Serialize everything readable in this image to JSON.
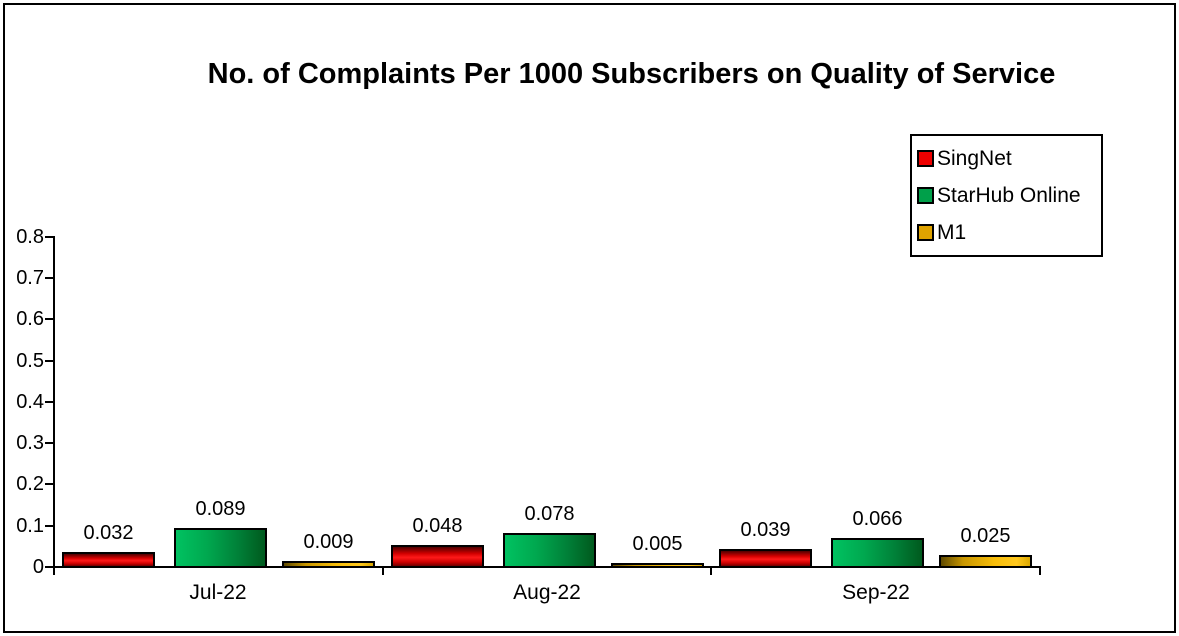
{
  "chart_data": {
    "type": "bar",
    "title": "No. of Complaints Per 1000 Subscribers on Quality of Service",
    "categories": [
      "Jul-22",
      "Aug-22",
      "Sep-22"
    ],
    "series": [
      {
        "name": "SingNet",
        "color": "#ee0000",
        "gradient": "linear-gradient(180deg,#4f0000 0%,#d40000 35%,#ff1a1a 55%,#cc0000 80%,#6f0000 100%)",
        "values": [
          0.032,
          0.048,
          0.039
        ],
        "labels": [
          "0.032",
          "0.048",
          "0.039"
        ]
      },
      {
        "name": "StarHub Online",
        "color": "#00a04a",
        "gradient": "linear-gradient(90deg,#00c261 0%,#00a84f 35%,#008038 70%,#005a1e 100%)",
        "values": [
          0.089,
          0.078,
          0.066
        ],
        "labels": [
          "0.089",
          "0.078",
          "0.066"
        ]
      },
      {
        "name": "M1",
        "color": "#dfa300",
        "gradient": "linear-gradient(90deg,#5f4a00 0%,#c89600 25%,#f7bd0a 60%,#ffc81e 85%,#dca800 100%)",
        "values": [
          0.009,
          0.005,
          0.025
        ],
        "labels": [
          "0.009",
          "0.005",
          "0.025"
        ]
      }
    ],
    "y_axis": {
      "min": 0,
      "max": 0.8,
      "tick_step": 0.1,
      "tick_labels": [
        "0",
        "0.1",
        "0.2",
        "0.3",
        "0.4",
        "0.5",
        "0.6",
        "0.7",
        "0.8"
      ]
    },
    "legend": {
      "position": "top-right"
    },
    "grid": false,
    "axis_color": "#000000",
    "background_color": "#ffffff"
  }
}
